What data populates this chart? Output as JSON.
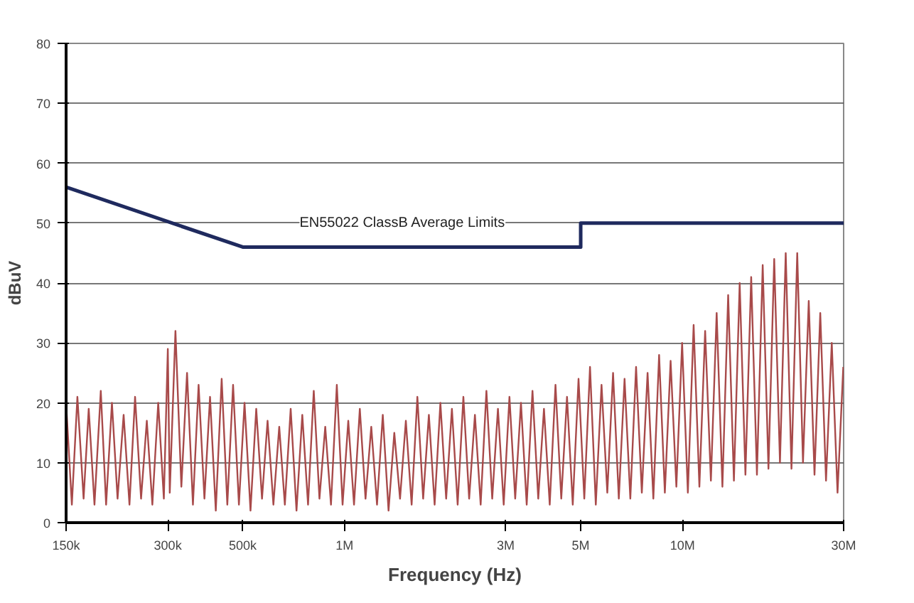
{
  "chart_data": {
    "type": "line",
    "xlabel": "Frequency (Hz)",
    "ylabel": "dBuV",
    "xlim": [
      150000,
      30000000
    ],
    "xticks": [
      {
        "value": 150000,
        "label": "150k"
      },
      {
        "value": 300000,
        "label": "300k"
      },
      {
        "value": 500000,
        "label": "500k"
      },
      {
        "value": 1000000,
        "label": "1M"
      },
      {
        "value": 3000000,
        "label": "3M"
      },
      {
        "value": 5000000,
        "label": "5M"
      },
      {
        "value": 10000000,
        "label": "10M"
      },
      {
        "value": 30000000,
        "label": "30M"
      }
    ],
    "ylim": [
      0,
      80
    ],
    "yticks": [
      0,
      10,
      20,
      30,
      40,
      50,
      60,
      70,
      80
    ],
    "log": "x",
    "grid": "y",
    "series": [
      {
        "color": "#a84a4a",
        "x": [
          150000,
          156000,
          162000,
          169000,
          175000,
          182000,
          190000,
          197000,
          205000,
          213000,
          222000,
          231000,
          240000,
          250000,
          260000,
          270000,
          281000,
          292000,
          300000,
          304000,
          316000,
          329000,
          342000,
          356000,
          370000,
          385000,
          400000,
          416000,
          433000,
          450000,
          468000,
          487000,
          506000,
          527000,
          548000,
          570000,
          592000,
          616000,
          641000,
          666000,
          693000,
          721000,
          750000,
          780000,
          811000,
          843000,
          877000,
          912000,
          949000,
          987000,
          1026000,
          1067000,
          1110000,
          1154000,
          1200000,
          1248000,
          1298000,
          1350000,
          1404000,
          1460000,
          1519000,
          1580000,
          1643000,
          1709000,
          1777000,
          1848000,
          1922000,
          1999000,
          2079000,
          2162000,
          2248000,
          2338000,
          2432000,
          2529000,
          2630000,
          2736000,
          2845000,
          2959000,
          3077000,
          3200000,
          3328000,
          3461000,
          3600000,
          3744000,
          3893000,
          4049000,
          4211000,
          4380000,
          4555000,
          4737000,
          4927000,
          5124000,
          5328000,
          5542000,
          5763000,
          5994000,
          6234000,
          6483000,
          6742000,
          7012000,
          7292000,
          7584000,
          7887000,
          8203000,
          8531000,
          8872000,
          9227000,
          9596000,
          9980000,
          10379000,
          10794000,
          11226000,
          11675000,
          12142000,
          12628000,
          13133000,
          13658000,
          14204000,
          14773000,
          15363000,
          15978000,
          16617000,
          17282000,
          17973000,
          18692000,
          19440000,
          20217000,
          21026000,
          21867000,
          22742000,
          23652000,
          24598000,
          25582000,
          26605000,
          27669000,
          28776000,
          29927000
        ],
        "values": [
          20,
          3,
          21,
          4,
          19,
          3,
          22,
          3,
          20,
          4,
          18,
          3,
          21,
          4,
          17,
          3,
          20,
          4,
          29,
          5,
          32,
          6,
          25,
          3,
          23,
          4,
          21,
          2,
          24,
          3,
          23,
          3,
          20,
          2,
          19,
          4,
          17,
          3,
          16,
          3,
          19,
          2,
          18,
          3,
          22,
          4,
          16,
          3,
          23,
          3,
          17,
          3,
          19,
          4,
          16,
          3,
          18,
          2,
          15,
          4,
          17,
          3,
          21,
          4,
          18,
          3,
          20,
          4,
          19,
          3,
          21,
          4,
          18,
          3,
          22,
          4,
          19,
          3,
          21,
          4,
          20,
          3,
          22,
          4,
          19,
          3,
          23,
          4,
          21,
          3,
          24,
          4,
          26,
          3,
          23,
          5,
          25,
          4,
          24,
          4,
          26,
          5,
          25,
          4,
          28,
          5,
          27,
          6,
          30,
          5,
          33,
          6,
          32,
          7,
          35,
          6,
          38,
          7,
          40,
          8,
          41,
          8,
          43,
          9,
          44,
          10,
          45,
          9,
          45,
          10,
          37,
          8,
          35,
          7,
          30,
          5,
          26
        ]
      },
      {
        "name": "EN55022 ClassB Average Limits",
        "color": "#1f2a5e",
        "x": [
          150000,
          500000,
          5000000,
          5000000,
          30000000
        ],
        "values": [
          56,
          46,
          46,
          50,
          50
        ]
      }
    ]
  }
}
